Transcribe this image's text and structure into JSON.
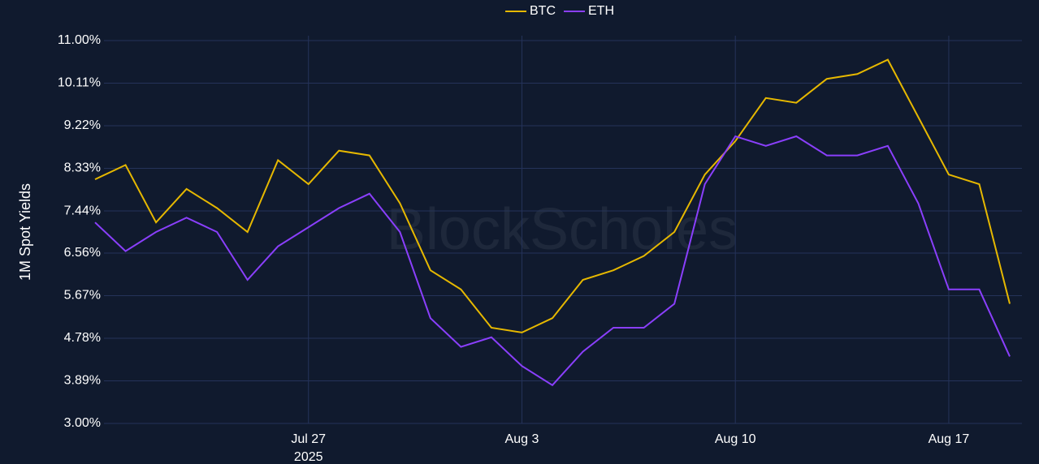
{
  "chart_data": {
    "type": "line",
    "y_label": "1M Spot Yields",
    "watermark": "BlockScholes",
    "x": [
      "2025-07-20",
      "2025-07-21",
      "2025-07-22",
      "2025-07-23",
      "2025-07-24",
      "2025-07-25",
      "2025-07-26",
      "2025-07-27",
      "2025-07-28",
      "2025-07-29",
      "2025-07-30",
      "2025-07-31",
      "2025-08-01",
      "2025-08-02",
      "2025-08-03",
      "2025-08-04",
      "2025-08-05",
      "2025-08-06",
      "2025-08-07",
      "2025-08-08",
      "2025-08-09",
      "2025-08-10",
      "2025-08-11",
      "2025-08-12",
      "2025-08-13",
      "2025-08-14",
      "2025-08-15",
      "2025-08-16",
      "2025-08-17",
      "2025-08-18",
      "2025-08-19"
    ],
    "series": [
      {
        "name": "BTC",
        "color": "#e6b800",
        "values": [
          8.1,
          8.4,
          7.2,
          7.9,
          7.5,
          7.0,
          8.5,
          8.0,
          8.7,
          8.6,
          7.6,
          6.2,
          5.8,
          5.0,
          4.9,
          5.2,
          6.0,
          6.2,
          6.5,
          7.0,
          8.2,
          8.9,
          9.8,
          9.7,
          10.2,
          10.3,
          10.6,
          9.4,
          8.2,
          8.0,
          5.5
        ]
      },
      {
        "name": "ETH",
        "color": "#8a3ffc",
        "values": [
          7.2,
          6.6,
          7.0,
          7.3,
          7.0,
          6.0,
          6.7,
          7.1,
          7.5,
          7.8,
          7.0,
          5.2,
          4.6,
          4.8,
          4.2,
          3.8,
          4.5,
          5.0,
          5.0,
          5.5,
          8.0,
          9.0,
          8.8,
          9.0,
          8.6,
          8.6,
          8.8,
          7.6,
          5.8,
          5.8,
          4.4
        ]
      }
    ],
    "xlim": [
      "2025-07-20",
      "2025-08-19"
    ],
    "xticks": [
      {
        "value": "2025-07-27",
        "label": "Jul 27"
      },
      {
        "value": "2025-08-03",
        "label": "Aug 3"
      },
      {
        "value": "2025-08-10",
        "label": "Aug 10"
      },
      {
        "value": "2025-08-17",
        "label": "Aug 17"
      }
    ],
    "x_year_label": "2025",
    "ylim": [
      3,
      11
    ],
    "yticks": [
      {
        "value": 3,
        "label": "3.00%"
      },
      {
        "value": 3.89,
        "label": "3.89%"
      },
      {
        "value": 4.78,
        "label": "4.78%"
      },
      {
        "value": 5.67,
        "label": "5.67%"
      },
      {
        "value": 6.56,
        "label": "6.56%"
      },
      {
        "value": 7.44,
        "label": "7.44%"
      },
      {
        "value": 8.33,
        "label": "8.33%"
      },
      {
        "value": 9.22,
        "label": "9.22%"
      },
      {
        "value": 10.11,
        "label": "10.11%"
      },
      {
        "value": 11,
        "label": "11.00%"
      }
    ],
    "grid": true,
    "legend": "top"
  }
}
